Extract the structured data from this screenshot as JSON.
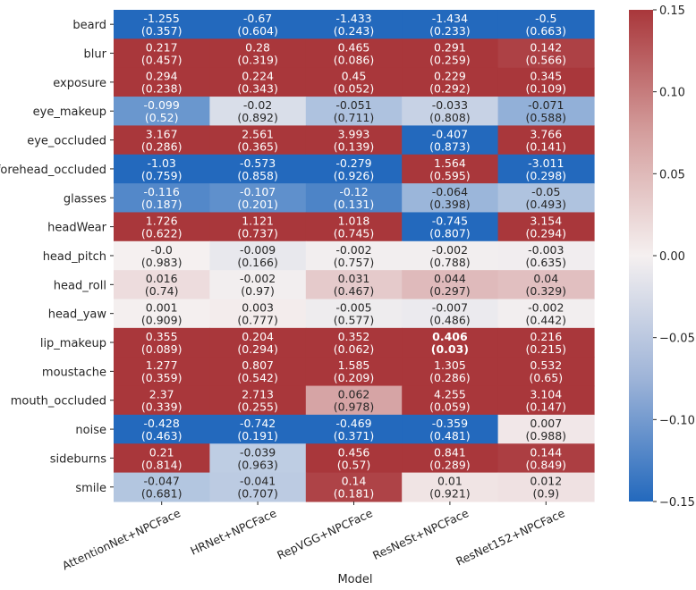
{
  "chart_data": {
    "type": "heatmap",
    "title": "",
    "xlabel": "Model",
    "ylabel": "",
    "columns": [
      "AttentionNet+NPCFace",
      "HRNet+NPCFace",
      "RepVGG+NPCFace",
      "ResNeSt+NPCFace",
      "ResNet152+NPCFace"
    ],
    "rows": [
      "beard",
      "blur",
      "exposure",
      "eye_makeup",
      "eye_occluded",
      "forehead_occluded",
      "glasses",
      "headWear",
      "head_pitch",
      "head_roll",
      "head_yaw",
      "lip_makeup",
      "moustache",
      "mouth_occluded",
      "noise",
      "sideburns",
      "smile"
    ],
    "values": [
      [
        "-1.255",
        "-0.67",
        "-1.433",
        "-1.434",
        "-0.5"
      ],
      [
        "0.217",
        "0.28",
        "0.465",
        "0.291",
        "0.142"
      ],
      [
        "0.294",
        "0.224",
        "0.45",
        "0.229",
        "0.345"
      ],
      [
        "-0.099",
        "-0.02",
        "-0.051",
        "-0.033",
        "-0.071"
      ],
      [
        "3.167",
        "2.561",
        "3.993",
        "-0.407",
        "3.766"
      ],
      [
        "-1.03",
        "-0.573",
        "-0.279",
        "1.564",
        "-3.011"
      ],
      [
        "-0.116",
        "-0.107",
        "-0.12",
        "-0.064",
        "-0.05"
      ],
      [
        "1.726",
        "1.121",
        "1.018",
        "-0.745",
        "3.154"
      ],
      [
        "-0.0",
        "-0.009",
        "-0.002",
        "-0.002",
        "-0.003"
      ],
      [
        "0.016",
        "-0.002",
        "0.031",
        "0.044",
        "0.04"
      ],
      [
        "0.001",
        "0.003",
        "-0.005",
        "-0.007",
        "-0.002"
      ],
      [
        "0.355",
        "0.204",
        "0.352",
        "0.406",
        "0.216"
      ],
      [
        "1.277",
        "0.807",
        "1.585",
        "1.305",
        "0.532"
      ],
      [
        "2.37",
        "2.713",
        "0.062",
        "4.255",
        "3.104"
      ],
      [
        "-0.428",
        "-0.742",
        "-0.469",
        "-0.359",
        "0.007"
      ],
      [
        "0.21",
        "-0.039",
        "0.456",
        "0.841",
        "0.144"
      ],
      [
        "-0.047",
        "-0.041",
        "0.14",
        "0.01",
        "0.012"
      ]
    ],
    "pvalues": [
      [
        "(0.357)",
        "(0.604)",
        "(0.243)",
        "(0.233)",
        "(0.663)"
      ],
      [
        "(0.457)",
        "(0.319)",
        "(0.086)",
        "(0.259)",
        "(0.566)"
      ],
      [
        "(0.238)",
        "(0.343)",
        "(0.052)",
        "(0.292)",
        "(0.109)"
      ],
      [
        "(0.52)",
        "(0.892)",
        "(0.711)",
        "(0.808)",
        "(0.588)"
      ],
      [
        "(0.286)",
        "(0.365)",
        "(0.139)",
        "(0.873)",
        "(0.141)"
      ],
      [
        "(0.759)",
        "(0.858)",
        "(0.926)",
        "(0.595)",
        "(0.298)"
      ],
      [
        "(0.187)",
        "(0.201)",
        "(0.131)",
        "(0.398)",
        "(0.493)"
      ],
      [
        "(0.622)",
        "(0.737)",
        "(0.745)",
        "(0.807)",
        "(0.294)"
      ],
      [
        "(0.983)",
        "(0.166)",
        "(0.757)",
        "(0.788)",
        "(0.635)"
      ],
      [
        "(0.74)",
        "(0.97)",
        "(0.467)",
        "(0.297)",
        "(0.329)"
      ],
      [
        "(0.909)",
        "(0.777)",
        "(0.577)",
        "(0.486)",
        "(0.442)"
      ],
      [
        "(0.089)",
        "(0.294)",
        "(0.062)",
        "(0.03)",
        "(0.215)"
      ],
      [
        "(0.359)",
        "(0.542)",
        "(0.209)",
        "(0.286)",
        "(0.65)"
      ],
      [
        "(0.339)",
        "(0.255)",
        "(0.978)",
        "(0.059)",
        "(0.147)"
      ],
      [
        "(0.463)",
        "(0.191)",
        "(0.371)",
        "(0.481)",
        "(0.988)"
      ],
      [
        "(0.814)",
        "(0.963)",
        "(0.57)",
        "(0.289)",
        "(0.849)"
      ],
      [
        "(0.681)",
        "(0.707)",
        "(0.181)",
        "(0.921)",
        "(0.9)"
      ]
    ],
    "significant_cells": [
      [
        11,
        3
      ]
    ],
    "colorbar": {
      "vmin": -0.15,
      "vmax": 0.15,
      "ticks": [
        0.15,
        0.1,
        0.05,
        0.0,
        -0.05,
        -0.1,
        -0.15
      ],
      "tick_labels": [
        "0.15",
        "0.10",
        "0.05",
        "0.00",
        "−0.05",
        "−0.10",
        "−0.15"
      ],
      "colormap": "vlag",
      "colors": {
        "low": "#2369bd",
        "mid": "#f5f0f0",
        "high": "#a9373b"
      }
    }
  }
}
